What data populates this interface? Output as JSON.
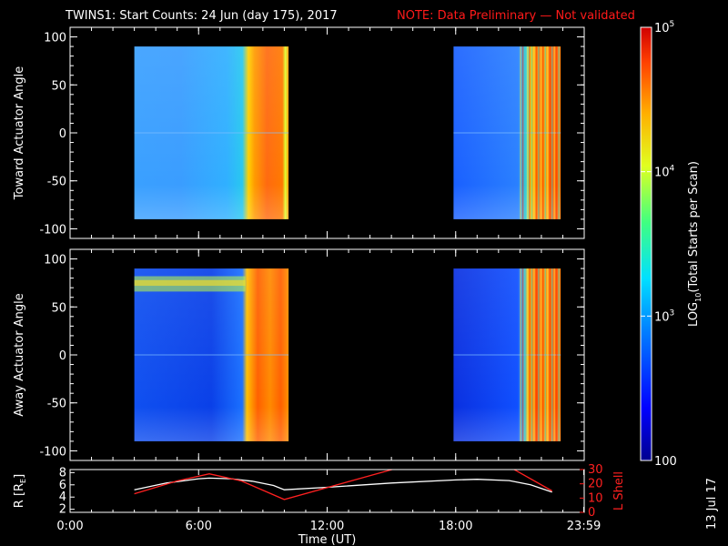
{
  "header": {
    "title": "TWINS1: Start Counts: 24 Jun (day 175), 2017",
    "note": "NOTE: Data Preliminary — Not validated"
  },
  "footer": {
    "date_stamp": "13 Jul 17"
  },
  "colors": {
    "note": "#ff1a1a",
    "r_line": "#ffffff",
    "l_shell_line": "#ff2020"
  },
  "chart_data": [
    {
      "type": "heatmap",
      "name": "toward",
      "ylabel": "Toward Actuator Angle",
      "ylim": [
        -110,
        110
      ],
      "yticks": [
        100,
        50,
        0,
        -50,
        -100
      ],
      "xlim": [
        0,
        24
      ],
      "data_blocks": [
        {
          "x": [
            3.0,
            10.2
          ],
          "y": [
            -90,
            90
          ]
        },
        {
          "x": [
            17.9,
            22.9
          ],
          "y": [
            -90,
            90
          ]
        }
      ]
    },
    {
      "type": "heatmap",
      "name": "away",
      "ylabel": "Away Actuator Angle",
      "ylim": [
        -110,
        110
      ],
      "yticks": [
        100,
        50,
        0,
        -50,
        -100
      ],
      "xlim": [
        0,
        24
      ],
      "data_blocks": [
        {
          "x": [
            3.0,
            10.2
          ],
          "y": [
            -90,
            90
          ]
        },
        {
          "x": [
            17.9,
            22.9
          ],
          "y": [
            -90,
            90
          ]
        }
      ]
    },
    {
      "type": "colorbar",
      "scale": "log",
      "range": [
        100,
        100000
      ],
      "label": "LOG10(Total Starts per Scan)",
      "ticks": [
        {
          "value": 100,
          "label": "100"
        },
        {
          "value": 1000,
          "label": "10^3"
        },
        {
          "value": 10000,
          "label": "10^4"
        },
        {
          "value": 100000,
          "label": "10^5"
        }
      ]
    },
    {
      "type": "line",
      "name": "ephemeris",
      "xlabel": "Time (UT)",
      "xlim": [
        0,
        24
      ],
      "xticks": [
        {
          "value": 0,
          "label": "0:00"
        },
        {
          "value": 6,
          "label": "6:00"
        },
        {
          "value": 12,
          "label": "12:00"
        },
        {
          "value": 18,
          "label": "18:00"
        },
        {
          "value": 23.98,
          "label": "23:59"
        }
      ],
      "ylabel_left": "R [RE]",
      "ylim_left": [
        1.5,
        8.5
      ],
      "yticks_left": [
        2,
        4,
        6,
        8
      ],
      "ylabel_right": "L Shell",
      "ylim_right": [
        0,
        30
      ],
      "yticks_right": [
        0,
        10,
        20,
        30
      ],
      "series": [
        {
          "name": "R [RE]",
          "axis": "left",
          "x": [
            3.0,
            4.5,
            6.0,
            6.5,
            7.5,
            8.5,
            9.5,
            10.0,
            12.0,
            15.0,
            18.0,
            19.0,
            20.5,
            21.5,
            22.5
          ],
          "y": [
            5.2,
            6.3,
            7.0,
            7.1,
            7.0,
            6.6,
            5.9,
            5.2,
            5.6,
            6.3,
            6.8,
            6.9,
            6.7,
            6.0,
            4.8
          ]
        },
        {
          "name": "L Shell",
          "axis": "right",
          "x": [
            3.0,
            5.0,
            6.5,
            8.0,
            10.0,
            15.5
          ],
          "y": [
            13,
            22,
            27,
            22,
            9,
            32
          ]
        },
        {
          "name": "L Shell",
          "axis": "right",
          "x": [
            20.5,
            22.5
          ],
          "y": [
            32,
            15
          ]
        }
      ]
    }
  ]
}
